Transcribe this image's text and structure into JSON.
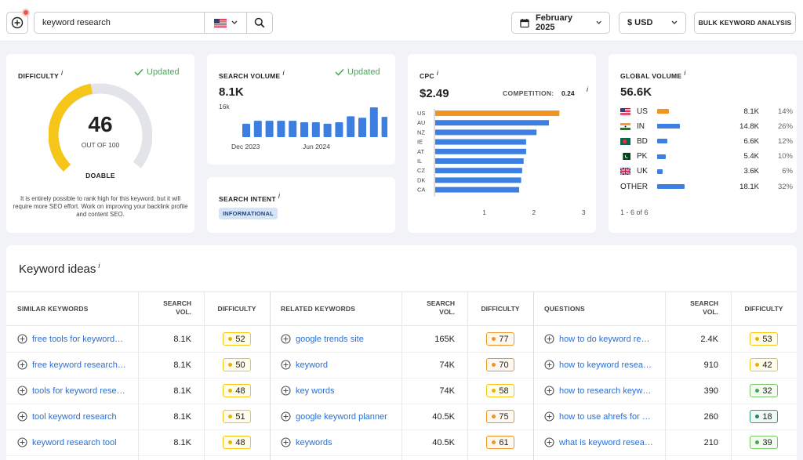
{
  "search": {
    "query": "keyword research",
    "country_flag": "US"
  },
  "toolbar": {
    "date": "February 2025",
    "currency": "$ USD",
    "bulk": "BULK KEYWORD ANALYSIS"
  },
  "difficulty": {
    "title": "DIFFICULTY",
    "updated": "Updated",
    "value": "46",
    "out_of": "OUT OF 100",
    "label": "DOABLE",
    "score": 46,
    "description": "It is entirely possible to rank high for this keyword, but it will require more SEO effort. Work on improving your backlink profile and content SEO.",
    "accent": "#f5c518"
  },
  "volume": {
    "title": "SEARCH VOLUME",
    "updated": "Updated",
    "value": "8.1K",
    "ytick": "16k",
    "xlabels": [
      "Dec 2023",
      "Jun 2024"
    ],
    "bars": [
      0.45,
      0.55,
      0.55,
      0.55,
      0.55,
      0.5,
      0.5,
      0.45,
      0.5,
      0.7,
      0.65,
      1.0,
      0.68
    ]
  },
  "intent": {
    "title": "SEARCH INTENT",
    "badge": "INFORMATIONAL"
  },
  "cpc": {
    "title": "CPC",
    "value": "$2.49",
    "competition_label": "COMPETITION:",
    "competition_value": "0.24",
    "chart_data": {
      "type": "bar",
      "orientation": "horizontal",
      "categories": [
        "US",
        "AU",
        "NZ",
        "IE",
        "AT",
        "IL",
        "CZ",
        "DK",
        "CA"
      ],
      "values": [
        2.5,
        2.29,
        2.04,
        1.83,
        1.83,
        1.78,
        1.75,
        1.73,
        1.69
      ],
      "xlim": [
        0,
        3
      ],
      "xticks": [
        "1",
        "2",
        "3"
      ],
      "highlight_color": "#f29422",
      "color": "#3d7fe0"
    }
  },
  "global": {
    "title": "GLOBAL VOLUME",
    "value": "56.6K",
    "footer": "1 - 6 of 6",
    "rows": [
      {
        "code": "US",
        "value": "8.1K",
        "pct": "14%",
        "share": 0.14
      },
      {
        "code": "IN",
        "value": "14.8K",
        "pct": "26%",
        "share": 0.26
      },
      {
        "code": "BD",
        "value": "6.6K",
        "pct": "12%",
        "share": 0.12
      },
      {
        "code": "PK",
        "value": "5.4K",
        "pct": "10%",
        "share": 0.1
      },
      {
        "code": "UK",
        "value": "3.6K",
        "pct": "6%",
        "share": 0.06
      },
      {
        "code": "OTHER",
        "value": "18.1K",
        "pct": "32%",
        "share": 0.32
      }
    ]
  },
  "ideas": {
    "title": "Keyword ideas",
    "sections": [
      {
        "header": "SIMILAR KEYWORDS",
        "rows": [
          {
            "kw": "free tools for keyword…",
            "vol": "8.1K",
            "diff": "52"
          },
          {
            "kw": "free keyword research…",
            "vol": "8.1K",
            "diff": "50"
          },
          {
            "kw": "tools for keyword rese…",
            "vol": "8.1K",
            "diff": "48"
          },
          {
            "kw": "tool keyword research",
            "vol": "8.1K",
            "diff": "51"
          },
          {
            "kw": "keyword research tool",
            "vol": "8.1K",
            "diff": "48"
          }
        ]
      },
      {
        "header": "RELATED KEYWORDS",
        "rows": [
          {
            "kw": "google trends site",
            "vol": "165K",
            "diff": "77"
          },
          {
            "kw": "keyword",
            "vol": "74K",
            "diff": "70"
          },
          {
            "kw": "key words",
            "vol": "74K",
            "diff": "58"
          },
          {
            "kw": "google keyword planner",
            "vol": "40.5K",
            "diff": "75"
          },
          {
            "kw": "keywords",
            "vol": "40.5K",
            "diff": "61"
          }
        ]
      },
      {
        "header": "QUESTIONS",
        "rows": [
          {
            "kw": "how to do keyword re…",
            "vol": "2.4K",
            "diff": "53"
          },
          {
            "kw": "how to keyword resea…",
            "vol": "910",
            "diff": "42"
          },
          {
            "kw": "how to research keyw…",
            "vol": "390",
            "diff": "32"
          },
          {
            "kw": "how to use ahrefs for …",
            "vol": "260",
            "diff": "18"
          },
          {
            "kw": "what is keyword resea…",
            "vol": "210",
            "diff": "39"
          }
        ]
      }
    ],
    "col_vol_1": "SEARCH",
    "col_vol_2": "VOL.",
    "col_diff": "DIFFICULTY"
  }
}
